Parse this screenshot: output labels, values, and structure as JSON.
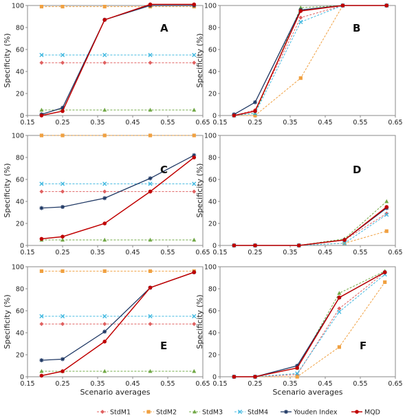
{
  "figure": {
    "x_axis_label": "Scenario averages",
    "y_axis_label": "Specificity (%)"
  },
  "series_styles": [
    {
      "name": "StdM1",
      "color": "#e06060",
      "marker": "diamond",
      "dashed": true,
      "width": 1
    },
    {
      "name": "StdM2",
      "color": "#f0a040",
      "marker": "square",
      "dashed": true,
      "width": 1
    },
    {
      "name": "StdM3",
      "color": "#70a845",
      "marker": "triangle",
      "dashed": true,
      "width": 1
    },
    {
      "name": "StdM4",
      "color": "#40b8e0",
      "marker": "x",
      "dashed": true,
      "width": 1
    },
    {
      "name": "Youden Index",
      "color": "#1f3864",
      "marker": "star",
      "dashed": false,
      "width": 1.3
    },
    {
      "name": "MQD",
      "color": "#c00000",
      "marker": "circle",
      "dashed": false,
      "width": 1.5
    }
  ],
  "chart_data": [
    {
      "type": "line",
      "panel_label": "A",
      "x": [
        0.19,
        0.25,
        0.37,
        0.5,
        0.625
      ],
      "xlim": [
        0.15,
        0.65
      ],
      "ylim": [
        0,
        100
      ],
      "xticks": [
        "0.15",
        "0.25",
        "0.35",
        "0.45",
        "0.55",
        "0.65"
      ],
      "yticks": [
        "0",
        "20",
        "40",
        "60",
        "80",
        "100"
      ],
      "series": [
        {
          "name": "StdM1",
          "values": [
            48,
            48,
            48,
            48,
            48
          ]
        },
        {
          "name": "StdM2",
          "values": [
            99,
            99,
            99,
            99,
            99
          ]
        },
        {
          "name": "StdM3",
          "values": [
            5,
            5,
            5,
            5,
            5
          ]
        },
        {
          "name": "StdM4",
          "values": [
            55,
            55,
            55,
            55,
            55
          ]
        },
        {
          "name": "Youden Index",
          "values": [
            1,
            7,
            87,
            100,
            100
          ]
        },
        {
          "name": "MQD",
          "values": [
            0,
            4,
            87,
            101,
            101
          ]
        }
      ]
    },
    {
      "type": "line",
      "panel_label": "B",
      "x": [
        0.19,
        0.25,
        0.38,
        0.5,
        0.625
      ],
      "xlim": [
        0.15,
        0.65
      ],
      "ylim": [
        0,
        100
      ],
      "xticks": [
        "0.15",
        "0.25",
        "0.35",
        "0.45",
        "0.55",
        "0.65"
      ],
      "yticks": [
        "0",
        "20",
        "40",
        "60",
        "80",
        "100"
      ],
      "series": [
        {
          "name": "StdM1",
          "values": [
            0,
            5,
            89,
            100,
            100
          ]
        },
        {
          "name": "StdM2",
          "values": [
            0,
            0,
            34,
            100,
            100
          ]
        },
        {
          "name": "StdM3",
          "values": [
            0,
            2,
            98,
            100,
            100
          ]
        },
        {
          "name": "StdM4",
          "values": [
            0,
            2,
            85,
            100,
            100
          ]
        },
        {
          "name": "Youden Index",
          "values": [
            1,
            12,
            96,
            100,
            100
          ]
        },
        {
          "name": "MQD",
          "values": [
            0,
            4,
            95,
            100,
            100
          ]
        }
      ]
    },
    {
      "type": "line",
      "panel_label": "C",
      "x": [
        0.19,
        0.25,
        0.37,
        0.5,
        0.625
      ],
      "xlim": [
        0.15,
        0.65
      ],
      "ylim": [
        0,
        100
      ],
      "xticks": [
        "0.15",
        "0.25",
        "0.35",
        "0.45",
        "0.55",
        "0.65"
      ],
      "yticks": [
        "0",
        "20",
        "40",
        "60",
        "80",
        "100"
      ],
      "series": [
        {
          "name": "StdM1",
          "values": [
            49,
            49,
            49,
            49,
            49
          ]
        },
        {
          "name": "StdM2",
          "values": [
            100,
            100,
            100,
            100,
            100
          ]
        },
        {
          "name": "StdM3",
          "values": [
            5,
            5,
            5,
            5,
            5
          ]
        },
        {
          "name": "StdM4",
          "values": [
            56,
            56,
            56,
            56,
            56
          ]
        },
        {
          "name": "Youden Index",
          "values": [
            34,
            35,
            43,
            61,
            82
          ]
        },
        {
          "name": "MQD",
          "values": [
            6,
            8,
            20,
            49,
            80
          ]
        }
      ]
    },
    {
      "type": "line",
      "panel_label": "D",
      "x": [
        0.19,
        0.25,
        0.375,
        0.505,
        0.625
      ],
      "xlim": [
        0.15,
        0.65
      ],
      "ylim": [
        0,
        100
      ],
      "xticks": [
        "0.15",
        "0.25",
        "0.35",
        "0.45",
        "0.55",
        "0.65"
      ],
      "yticks": [
        "0",
        "20",
        "40",
        "60",
        "80",
        "100"
      ],
      "series": [
        {
          "name": "StdM1",
          "values": [
            0,
            0,
            0,
            5,
            29
          ]
        },
        {
          "name": "StdM2",
          "values": [
            0,
            0,
            0,
            2,
            13
          ]
        },
        {
          "name": "StdM3",
          "values": [
            0,
            0,
            0,
            6,
            40
          ]
        },
        {
          "name": "StdM4",
          "values": [
            0,
            0,
            0,
            2,
            28
          ]
        },
        {
          "name": "Youden Index",
          "values": [
            0,
            0,
            0,
            5,
            34
          ]
        },
        {
          "name": "MQD",
          "values": [
            0,
            0,
            0,
            5,
            35
          ]
        }
      ]
    },
    {
      "type": "line",
      "panel_label": "E",
      "x": [
        0.19,
        0.25,
        0.37,
        0.5,
        0.625
      ],
      "xlim": [
        0.15,
        0.65
      ],
      "ylim": [
        0,
        100
      ],
      "xticks": [
        "0.15",
        "0.25",
        "0.35",
        "0.45",
        "0.55",
        "0.65"
      ],
      "yticks": [
        "0",
        "20",
        "40",
        "60",
        "80",
        "100"
      ],
      "series": [
        {
          "name": "StdM1",
          "values": [
            48,
            48,
            48,
            48,
            48
          ]
        },
        {
          "name": "StdM2",
          "values": [
            96,
            96,
            96,
            96,
            96
          ]
        },
        {
          "name": "StdM3",
          "values": [
            5,
            5,
            5,
            5,
            5
          ]
        },
        {
          "name": "StdM4",
          "values": [
            55,
            55,
            55,
            55,
            55
          ]
        },
        {
          "name": "Youden Index",
          "values": [
            15,
            16,
            41,
            81,
            95
          ]
        },
        {
          "name": "MQD",
          "values": [
            1,
            5,
            32,
            81,
            95
          ]
        }
      ]
    },
    {
      "type": "line",
      "panel_label": "F",
      "x": [
        0.19,
        0.25,
        0.37,
        0.49,
        0.62
      ],
      "xlim": [
        0.15,
        0.65
      ],
      "ylim": [
        0,
        100
      ],
      "xticks": [
        "0.15",
        "0.25",
        "0.35",
        "0.45",
        "0.55",
        "0.65"
      ],
      "yticks": [
        "0",
        "20",
        "40",
        "60",
        "80",
        "100"
      ],
      "series": [
        {
          "name": "StdM1",
          "values": [
            0,
            0,
            2,
            62,
            95
          ]
        },
        {
          "name": "StdM2",
          "values": [
            0,
            0,
            0,
            27,
            86
          ]
        },
        {
          "name": "StdM3",
          "values": [
            0,
            0,
            8,
            76,
            96
          ]
        },
        {
          "name": "StdM4",
          "values": [
            0,
            0,
            3,
            59,
            93
          ]
        },
        {
          "name": "Youden Index",
          "values": [
            0,
            0,
            10,
            72,
            95
          ]
        },
        {
          "name": "MQD",
          "values": [
            0,
            0,
            8,
            72,
            95
          ]
        }
      ]
    }
  ]
}
